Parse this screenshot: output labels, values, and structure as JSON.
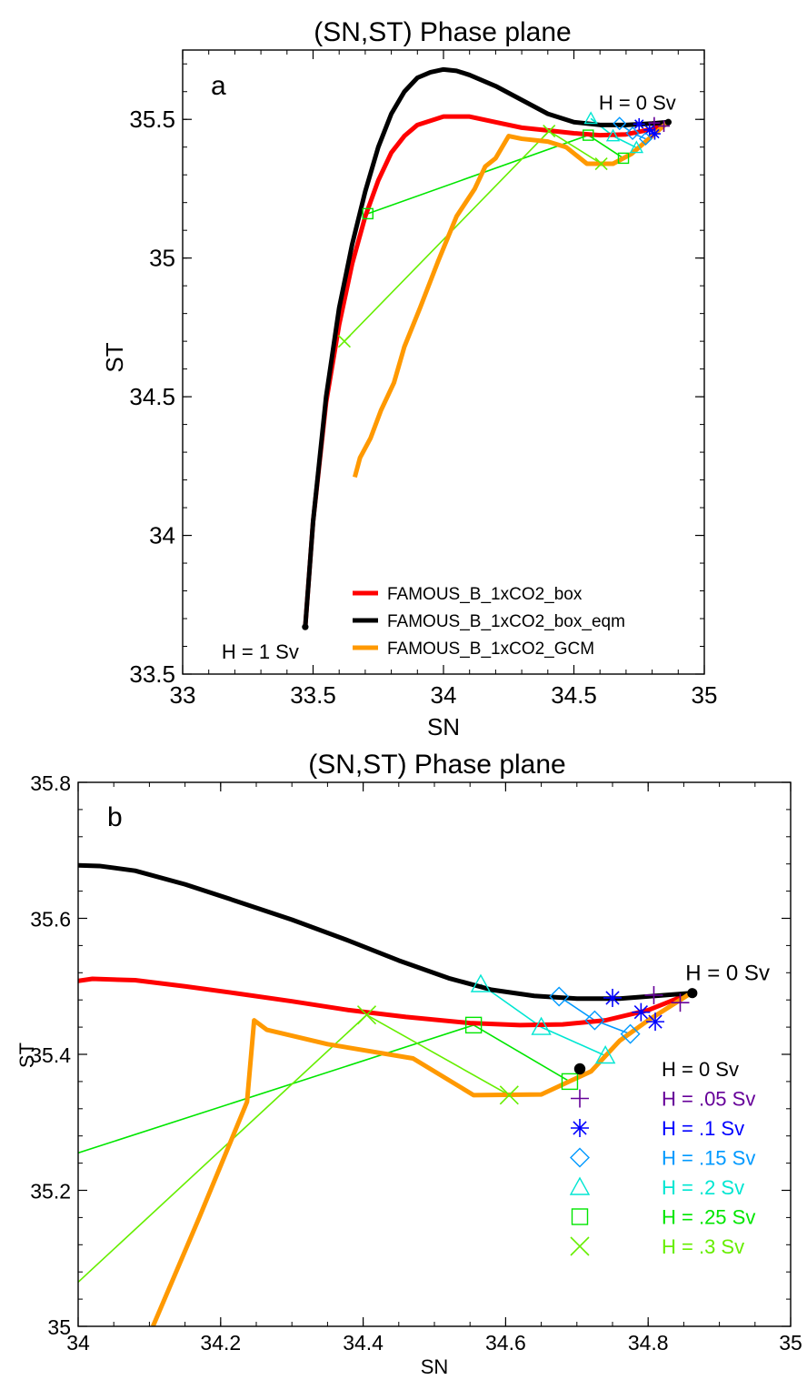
{
  "chart_data": [
    {
      "type": "line",
      "panel_label": "a",
      "title": "(SN,ST) Phase plane",
      "xlabel": "SN",
      "ylabel": "ST",
      "xlim": [
        33,
        35
      ],
      "ylim": [
        33.5,
        35.75
      ],
      "xticks": [
        "33",
        "33.5",
        "34",
        "34.5",
        "35"
      ],
      "yticks": [
        "33.5",
        "34",
        "34.5",
        "35",
        "35.5"
      ],
      "annotations": [
        {
          "text": "H = 0 Sv",
          "x": 34.86,
          "y": 35.49
        },
        {
          "text": "H = 1 Sv",
          "x": 33.47,
          "y": 33.67
        }
      ],
      "legend_position": "bottom-right",
      "series": [
        {
          "name": "FAMOUS_B_1xCO2_box",
          "color": "#ff0000",
          "points": [
            [
              33.47,
              33.67
            ],
            [
              33.5,
              34.05
            ],
            [
              33.55,
              34.48
            ],
            [
              33.6,
              34.76
            ],
            [
              33.65,
              34.98
            ],
            [
              33.7,
              35.15
            ],
            [
              33.75,
              35.28
            ],
            [
              33.8,
              35.38
            ],
            [
              33.85,
              35.44
            ],
            [
              33.9,
              35.48
            ],
            [
              34.0,
              35.51
            ],
            [
              34.1,
              35.51
            ],
            [
              34.2,
              35.49
            ],
            [
              34.3,
              35.47
            ],
            [
              34.4,
              35.46
            ],
            [
              34.5,
              35.45
            ],
            [
              34.6,
              35.443
            ],
            [
              34.7,
              35.446
            ],
            [
              34.8,
              35.465
            ],
            [
              34.86,
              35.49
            ]
          ]
        },
        {
          "name": "FAMOUS_B_1xCO2_box_eqm",
          "color": "#000000",
          "points": [
            [
              33.47,
              33.67
            ],
            [
              33.5,
              34.05
            ],
            [
              33.55,
              34.5
            ],
            [
              33.6,
              34.82
            ],
            [
              33.65,
              35.05
            ],
            [
              33.7,
              35.24
            ],
            [
              33.75,
              35.4
            ],
            [
              33.8,
              35.52
            ],
            [
              33.85,
              35.6
            ],
            [
              33.9,
              35.65
            ],
            [
              33.95,
              35.67
            ],
            [
              34.0,
              35.68
            ],
            [
              34.05,
              35.675
            ],
            [
              34.1,
              35.66
            ],
            [
              34.2,
              35.62
            ],
            [
              34.3,
              35.57
            ],
            [
              34.4,
              35.52
            ],
            [
              34.5,
              35.49
            ],
            [
              34.6,
              35.48
            ],
            [
              34.7,
              35.48
            ],
            [
              34.8,
              35.485
            ],
            [
              34.86,
              35.49
            ]
          ]
        },
        {
          "name": "FAMOUS_B_1xCO2_GCM",
          "color": "#ff9900",
          "points": [
            [
              33.66,
              34.21
            ],
            [
              33.68,
              34.28
            ],
            [
              33.72,
              34.35
            ],
            [
              33.76,
              34.45
            ],
            [
              33.81,
              34.55
            ],
            [
              33.85,
              34.68
            ],
            [
              33.91,
              34.82
            ],
            [
              33.98,
              34.99
            ],
            [
              34.05,
              35.15
            ],
            [
              34.12,
              35.25
            ],
            [
              34.16,
              35.33
            ],
            [
              34.2,
              35.36
            ],
            [
              34.25,
              35.44
            ],
            [
              34.3,
              35.43
            ],
            [
              34.4,
              35.42
            ],
            [
              34.47,
              35.4
            ],
            [
              34.55,
              35.34
            ],
            [
              34.65,
              35.34
            ],
            [
              34.72,
              35.375
            ],
            [
              34.8,
              35.44
            ],
            [
              34.86,
              35.49
            ]
          ]
        },
        {
          "name": "H = .15 Sv",
          "color": "#0099ff",
          "points": [
            [
              34.675,
              35.485
            ],
            [
              34.725,
              35.45
            ],
            [
              34.775,
              35.43
            ]
          ]
        },
        {
          "name": "H = .2 Sv",
          "color": "#00e6d2",
          "points": [
            [
              34.565,
              35.503
            ],
            [
              34.65,
              35.44
            ],
            [
              34.74,
              35.398
            ]
          ]
        },
        {
          "name": "H = .25 Sv",
          "color": "#00e600",
          "points": [
            [
              33.71,
              35.16
            ],
            [
              34.555,
              35.443
            ],
            [
              34.69,
              35.36
            ]
          ]
        },
        {
          "name": "H = .3 Sv",
          "color": "#66ee00",
          "points": [
            [
              33.62,
              34.7
            ],
            [
              34.405,
              35.458
            ],
            [
              34.605,
              35.34
            ]
          ]
        }
      ]
    },
    {
      "type": "line",
      "panel_label": "b",
      "title": "(SN,ST) Phase plane",
      "xlabel": "SN",
      "ylabel": "ST",
      "xlim": [
        34,
        35
      ],
      "ylim": [
        35,
        35.8
      ],
      "xticks": [
        "34",
        "34.2",
        "34.4",
        "34.6",
        "34.8",
        "35"
      ],
      "yticks": [
        "35",
        "35.2",
        "35.4",
        "35.6",
        "35.8"
      ],
      "annotations": [
        {
          "text": "H = 0 Sv",
          "x": 34.86,
          "y": 35.49
        }
      ],
      "legend_position": "bottom-right",
      "series": [
        {
          "name": "FAMOUS_B_1xCO2_box",
          "color": "#ff0000",
          "points": [
            [
              34.0,
              35.508
            ],
            [
              34.02,
              35.511
            ],
            [
              34.08,
              35.509
            ],
            [
              34.15,
              35.5
            ],
            [
              34.22,
              35.49
            ],
            [
              34.3,
              35.478
            ],
            [
              34.38,
              35.465
            ],
            [
              34.46,
              35.455
            ],
            [
              34.55,
              35.446
            ],
            [
              34.62,
              35.443
            ],
            [
              34.68,
              35.444
            ],
            [
              34.74,
              35.45
            ],
            [
              34.8,
              35.465
            ],
            [
              34.86,
              35.49
            ]
          ]
        },
        {
          "name": "FAMOUS_B_1xCO2_box_eqm",
          "color": "#000000",
          "points": [
            [
              34.0,
              35.678
            ],
            [
              34.03,
              35.677
            ],
            [
              34.08,
              35.67
            ],
            [
              34.15,
              35.65
            ],
            [
              34.22,
              35.626
            ],
            [
              34.3,
              35.598
            ],
            [
              34.38,
              35.567
            ],
            [
              34.45,
              35.538
            ],
            [
              34.52,
              35.512
            ],
            [
              34.58,
              35.495
            ],
            [
              34.64,
              35.486
            ],
            [
              34.7,
              35.482
            ],
            [
              34.76,
              35.482
            ],
            [
              34.81,
              35.486
            ],
            [
              34.86,
              35.49
            ]
          ]
        },
        {
          "name": "FAMOUS_B_1xCO2_GCM",
          "color": "#ff9900",
          "points": [
            [
              34.105,
              35.0
            ],
            [
              34.17,
              35.16
            ],
            [
              34.237,
              35.33
            ],
            [
              34.247,
              35.45
            ],
            [
              34.265,
              35.436
            ],
            [
              34.35,
              35.415
            ],
            [
              34.47,
              35.394
            ],
            [
              34.555,
              35.34
            ],
            [
              34.65,
              35.341
            ],
            [
              34.72,
              35.375
            ],
            [
              34.76,
              35.42
            ],
            [
              34.8,
              35.45
            ],
            [
              34.86,
              35.49
            ]
          ]
        },
        {
          "name": "H = .15 Sv",
          "color": "#0099ff",
          "points": [
            [
              34.675,
              35.485
            ],
            [
              34.725,
              35.45
            ],
            [
              34.775,
              35.43
            ]
          ]
        },
        {
          "name": "H = .2 Sv",
          "color": "#00e6d2",
          "points": [
            [
              34.565,
              35.503
            ],
            [
              34.65,
              35.44
            ],
            [
              34.74,
              35.398
            ]
          ]
        },
        {
          "name": "H = .25 Sv",
          "color": "#00e600",
          "points": [
            [
              34.0,
              35.255
            ],
            [
              34.555,
              35.443
            ],
            [
              34.69,
              35.36
            ]
          ]
        },
        {
          "name": "H = .3 Sv",
          "color": "#66ee00",
          "points": [
            [
              34.0,
              35.065
            ],
            [
              34.405,
              35.458
            ],
            [
              34.605,
              35.34
            ]
          ]
        }
      ],
      "markers": [
        {
          "label": "H = 0 Sv",
          "symbol": "dot",
          "color": "#000000",
          "points": [
            [
              34.862,
              35.49
            ]
          ]
        },
        {
          "label": "H = .05 Sv",
          "symbol": "plus",
          "color": "#660099",
          "points": [
            [
              34.808,
              35.487
            ],
            [
              34.845,
              35.476
            ]
          ]
        },
        {
          "label": "H = .1 Sv",
          "symbol": "asterisk",
          "color": "#0000ff",
          "points": [
            [
              34.75,
              35.483
            ],
            [
              34.79,
              35.462
            ],
            [
              34.81,
              35.448
            ]
          ]
        },
        {
          "label": "H = .15 Sv",
          "symbol": "diamond",
          "color": "#0099ff",
          "points": [
            [
              34.675,
              35.485
            ],
            [
              34.725,
              35.45
            ],
            [
              34.775,
              35.43
            ]
          ]
        },
        {
          "label": "H = .2 Sv",
          "symbol": "triangle",
          "color": "#00e6d2",
          "points": [
            [
              34.565,
              35.503
            ],
            [
              34.65,
              35.44
            ],
            [
              34.74,
              35.398
            ]
          ]
        },
        {
          "label": "H = .25 Sv",
          "symbol": "square",
          "color": "#00e600",
          "points": [
            [
              34.555,
              35.443
            ],
            [
              34.69,
              35.36
            ]
          ]
        },
        {
          "label": "H = .3 Sv",
          "symbol": "x",
          "color": "#66ee00",
          "points": [
            [
              34.405,
              35.458
            ],
            [
              34.605,
              35.34
            ]
          ]
        }
      ]
    }
  ],
  "panel_a_markers": [
    {
      "symbol": "dot",
      "color": "#000000",
      "points": [
        [
          34.862,
          35.49
        ],
        [
          33.47,
          33.67
        ]
      ]
    },
    {
      "symbol": "plus",
      "color": "#660099",
      "points": [
        [
          34.808,
          35.487
        ],
        [
          34.845,
          35.476
        ]
      ]
    },
    {
      "symbol": "asterisk",
      "color": "#0000ff",
      "points": [
        [
          34.75,
          35.483
        ],
        [
          34.79,
          35.462
        ],
        [
          34.81,
          35.448
        ]
      ]
    },
    {
      "symbol": "diamond",
      "color": "#0099ff",
      "points": [
        [
          34.675,
          35.485
        ],
        [
          34.725,
          35.45
        ],
        [
          34.775,
          35.43
        ]
      ]
    },
    {
      "symbol": "triangle",
      "color": "#00e6d2",
      "points": [
        [
          34.565,
          35.503
        ],
        [
          34.65,
          35.44
        ],
        [
          34.74,
          35.398
        ]
      ]
    },
    {
      "symbol": "square",
      "color": "#00e600",
      "points": [
        [
          33.71,
          35.16
        ],
        [
          34.555,
          35.443
        ],
        [
          34.69,
          35.36
        ]
      ]
    },
    {
      "symbol": "x",
      "color": "#66ee00",
      "points": [
        [
          33.62,
          34.7
        ],
        [
          34.405,
          35.458
        ],
        [
          34.605,
          35.34
        ]
      ]
    }
  ]
}
